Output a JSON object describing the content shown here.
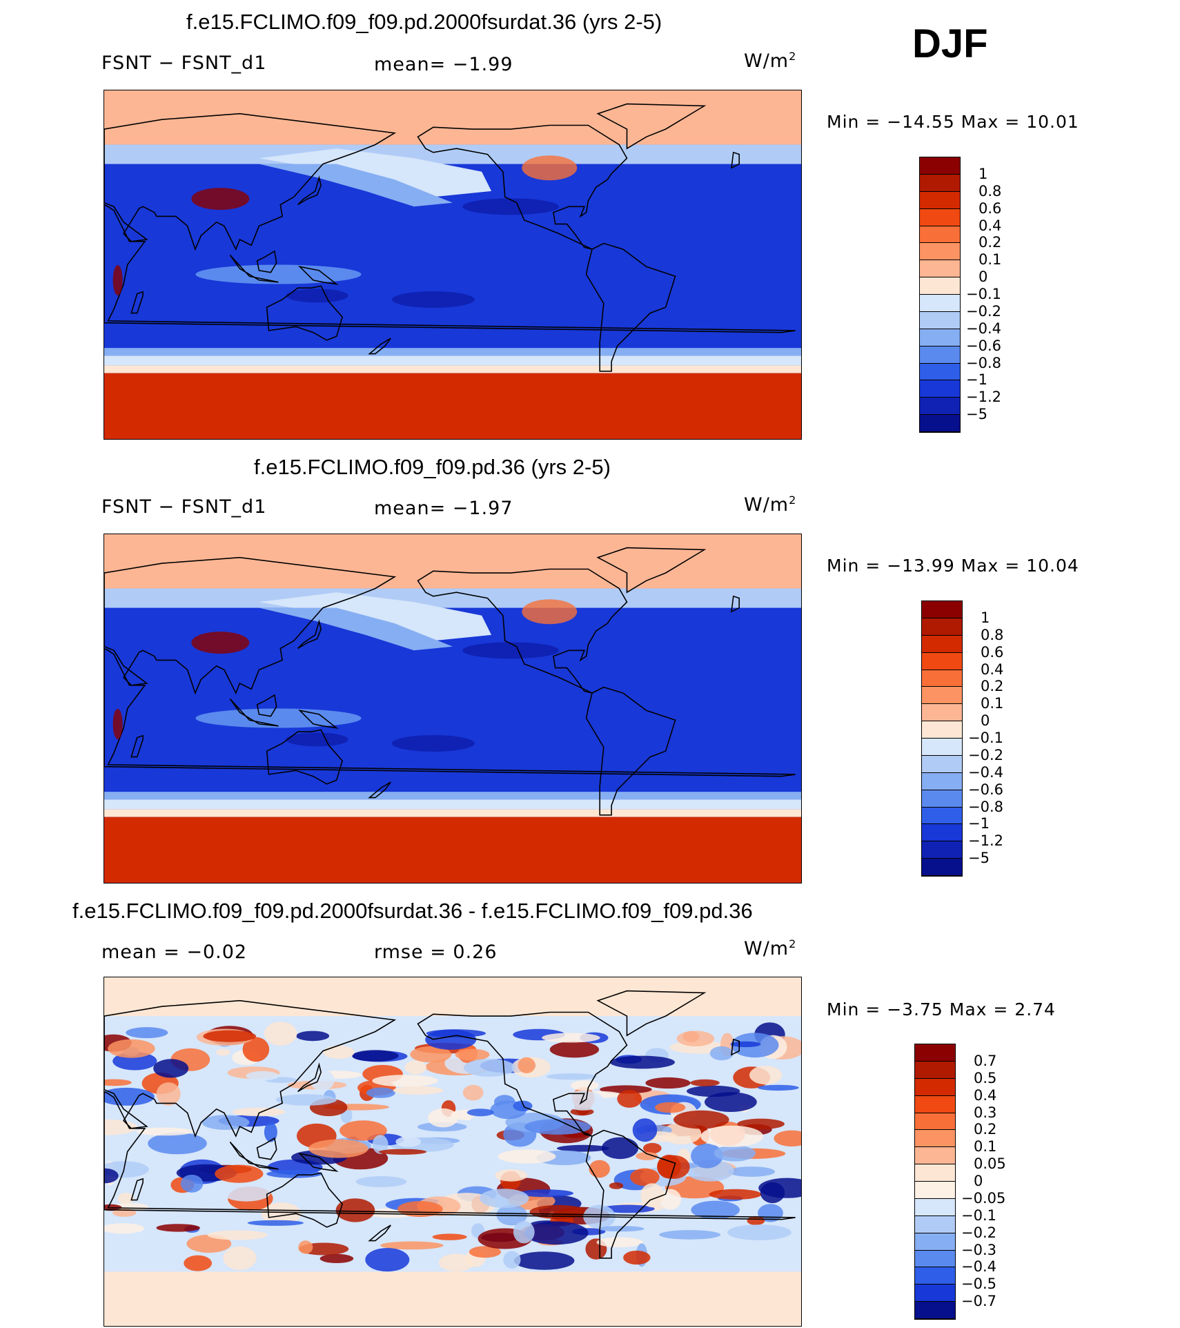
{
  "season": "DJF",
  "panels": [
    {
      "title": "f.e15.FCLIMO.f09_f09.pd.2000fsurdat.36 (yrs 2-5)",
      "left_label": "FSNT − FSNT_d1",
      "mid_label": "mean=   −1.99",
      "units": "W/m",
      "units_sup": "2",
      "minmax": "Min  =  −14.55  Max  =     10.01",
      "levels": [
        "1",
        "0.8",
        "0.6",
        "0.4",
        "0.2",
        "0.1",
        "0",
        "−0.1",
        "−0.2",
        "−0.4",
        "−0.6",
        "−0.8",
        "−1",
        "−1.2",
        "−5"
      ],
      "colors": [
        "#8b0000",
        "#b01a00",
        "#d42a00",
        "#f04a12",
        "#f87038",
        "#fb9462",
        "#fcb694",
        "#fde6d4",
        "#d6e6fb",
        "#b0ccf6",
        "#86aef2",
        "#5a8aee",
        "#2f5fe8",
        "#1838d8",
        "#0f22b4",
        "#060f8c"
      ],
      "style": "mean"
    },
    {
      "title": "f.e15.FCLIMO.f09_f09.pd.36 (yrs 2-5)",
      "left_label": "FSNT − FSNT_d1",
      "mid_label": "mean=   −1.97",
      "units": "W/m",
      "units_sup": "2",
      "minmax": "Min  =  −13.99  Max  =     10.04",
      "levels": [
        "1",
        "0.8",
        "0.6",
        "0.4",
        "0.2",
        "0.1",
        "0",
        "−0.1",
        "−0.2",
        "−0.4",
        "−0.6",
        "−0.8",
        "−1",
        "−1.2",
        "−5"
      ],
      "colors": [
        "#8b0000",
        "#b01a00",
        "#d42a00",
        "#f04a12",
        "#f87038",
        "#fb9462",
        "#fcb694",
        "#fde6d4",
        "#d6e6fb",
        "#b0ccf6",
        "#86aef2",
        "#5a8aee",
        "#2f5fe8",
        "#1838d8",
        "#0f22b4",
        "#060f8c"
      ],
      "style": "mean"
    },
    {
      "title": "f.e15.FCLIMO.f09_f09.pd.2000fsurdat.36 - f.e15.FCLIMO.f09_f09.pd.36",
      "left_label": "mean  =   −0.02",
      "mid_label": "rmse  =     0.26",
      "units": "W/m",
      "units_sup": "2",
      "minmax": "Min  =    −3.75  Max  =       2.74",
      "levels": [
        "0.7",
        "0.5",
        "0.4",
        "0.3",
        "0.2",
        "0.1",
        "0.05",
        "0",
        "−0.05",
        "−0.1",
        "−0.2",
        "−0.3",
        "−0.4",
        "−0.5",
        "−0.7"
      ],
      "colors": [
        "#8b0000",
        "#b01a00",
        "#d42a00",
        "#f04a12",
        "#f87038",
        "#fb9462",
        "#fcb694",
        "#fde6d4",
        "#fdf0e4",
        "#d6e6fb",
        "#b0ccf6",
        "#86aef2",
        "#5a8aee",
        "#2f5fe8",
        "#1838d8",
        "#060f8c"
      ],
      "style": "diff"
    }
  ]
}
